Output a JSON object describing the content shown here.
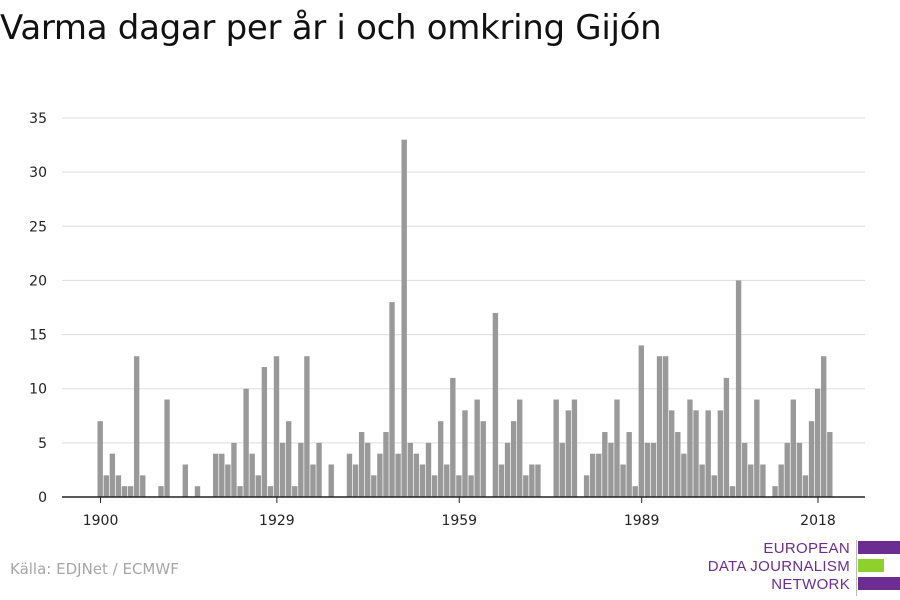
{
  "title": "Varma dagar per år i och omkring Gijón",
  "source": "Källa: EDJNet / ECMWF",
  "logo": {
    "lines": [
      "EUROPEAN",
      "DATA JOURNALISM",
      "NETWORK"
    ],
    "colors": [
      "#6b2d91",
      "#8fd12c",
      "#6b2d91"
    ]
  },
  "colors": {
    "bar": "#999999",
    "grid": "#dddddd",
    "axis": "#222222",
    "text": "#222222"
  },
  "chart_data": {
    "type": "bar",
    "title": "Varma dagar per år i och omkring Gijón",
    "xlabel": "",
    "ylabel": "",
    "ylim": [
      0,
      35
    ],
    "yticks": [
      0,
      5,
      10,
      15,
      20,
      25,
      30,
      35
    ],
    "xticks": [
      1900,
      1929,
      1959,
      1989,
      2018
    ],
    "grid": true,
    "x_start": 1900,
    "values": [
      7,
      2,
      4,
      2,
      1,
      1,
      13,
      2,
      0,
      0,
      1,
      9,
      0,
      0,
      3,
      0,
      1,
      0,
      0,
      4,
      4,
      3,
      5,
      1,
      10,
      4,
      2,
      12,
      1,
      13,
      5,
      7,
      1,
      5,
      13,
      3,
      5,
      0,
      3,
      0,
      0,
      4,
      3,
      6,
      5,
      2,
      4,
      6,
      18,
      4,
      33,
      5,
      4,
      3,
      5,
      2,
      7,
      3,
      11,
      2,
      8,
      2,
      9,
      7,
      0,
      17,
      3,
      5,
      7,
      9,
      2,
      3,
      3,
      0,
      0,
      9,
      5,
      8,
      9,
      0,
      2,
      4,
      4,
      6,
      5,
      9,
      3,
      6,
      1,
      14,
      5,
      5,
      13,
      13,
      8,
      6,
      4,
      9,
      8,
      3,
      8,
      2,
      8,
      11,
      1,
      20,
      5,
      3,
      9,
      3,
      0,
      1,
      3,
      5,
      9,
      5,
      2,
      7,
      10,
      13,
      6
    ]
  }
}
